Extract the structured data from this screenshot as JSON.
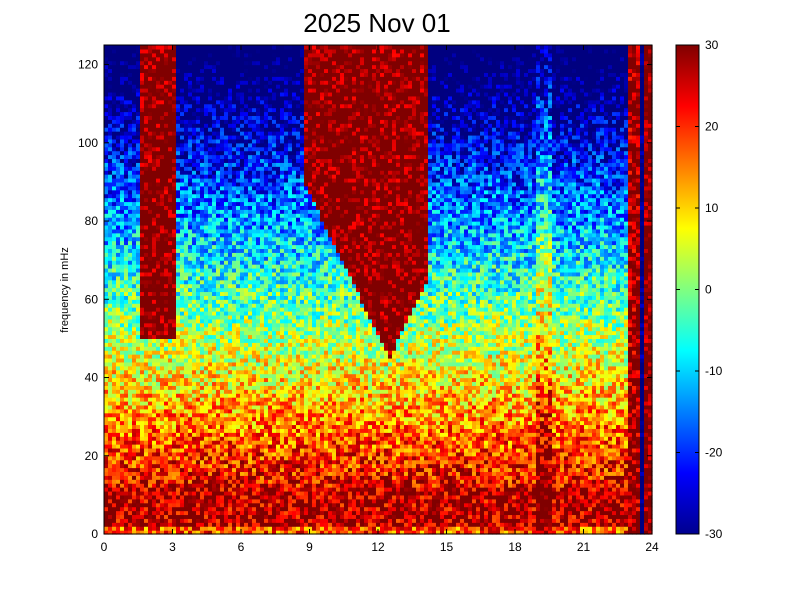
{
  "chart_data": {
    "type": "heatmap",
    "title": "2025 Nov 01",
    "xlabel": "",
    "ylabel": "frequency in mHz",
    "xlim": [
      0,
      24
    ],
    "ylim": [
      0,
      125
    ],
    "x_ticks": [
      "0",
      "3",
      "6",
      "9",
      "12",
      "15",
      "18",
      "21",
      "24"
    ],
    "y_ticks": [
      "0",
      "20",
      "40",
      "60",
      "80",
      "100",
      "120"
    ],
    "colorbar": {
      "range": [
        -30,
        30
      ],
      "ticks": [
        "-30",
        "-20",
        "-10",
        "0",
        "10",
        "20",
        "30"
      ],
      "colormap": "jet"
    },
    "grid": false
  }
}
